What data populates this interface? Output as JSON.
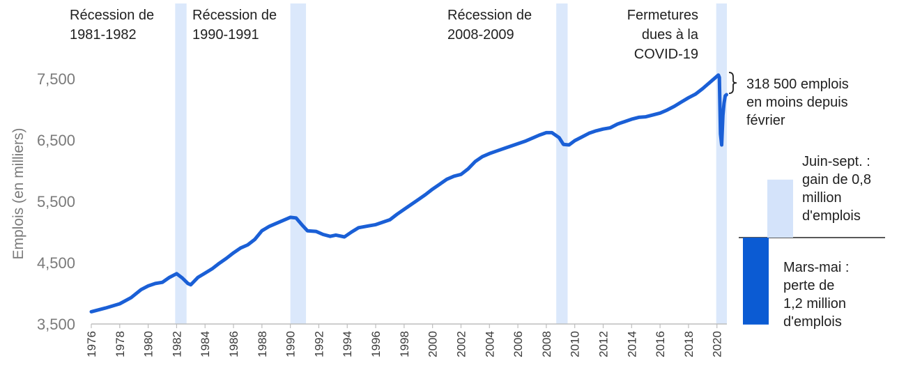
{
  "chart_data": {
    "type": "line",
    "ylabel": "Emplois (en milliers)",
    "ylim": [
      3500,
      7800
    ],
    "xlim": [
      1976,
      2020.7
    ],
    "yticks": [
      "3,500",
      "4,500",
      "5,500",
      "6,500",
      "7,500"
    ],
    "ytick_values": [
      3500,
      4500,
      5500,
      6500,
      7500
    ],
    "xticks": [
      "1976",
      "1978",
      "1980",
      "1982",
      "1984",
      "1986",
      "1988",
      "1990",
      "1992",
      "1994",
      "1996",
      "1998",
      "2000",
      "2002",
      "2004",
      "2006",
      "2008",
      "2010",
      "2012",
      "2014",
      "2016",
      "2018",
      "2020"
    ],
    "grid": false,
    "line_color": "#1a5fd6",
    "shade_color": "#dbe8fb",
    "recessions": [
      {
        "start": 1981.9,
        "end": 1982.7,
        "label": [
          "Récession de",
          "1981-1982"
        ]
      },
      {
        "start": 1990.0,
        "end": 1991.1,
        "label": [
          "Récession de",
          "1990-1991"
        ]
      },
      {
        "start": 2008.7,
        "end": 2009.5,
        "label": [
          "Récession de",
          "2008-2009"
        ]
      },
      {
        "start": 2019.95,
        "end": 2020.7,
        "label": [
          "Fermetures",
          "dues à la",
          "COVID-19"
        ]
      }
    ],
    "series": [
      {
        "values": [
          [
            1976.0,
            3700
          ],
          [
            1977.0,
            3760
          ],
          [
            1978.0,
            3830
          ],
          [
            1978.8,
            3930
          ],
          [
            1979.5,
            4060
          ],
          [
            1980.0,
            4120
          ],
          [
            1980.5,
            4160
          ],
          [
            1981.0,
            4180
          ],
          [
            1981.5,
            4260
          ],
          [
            1982.0,
            4320
          ],
          [
            1982.4,
            4250
          ],
          [
            1982.8,
            4160
          ],
          [
            1983.0,
            4140
          ],
          [
            1983.5,
            4260
          ],
          [
            1984.0,
            4330
          ],
          [
            1984.5,
            4400
          ],
          [
            1985.0,
            4490
          ],
          [
            1985.5,
            4570
          ],
          [
            1986.0,
            4660
          ],
          [
            1986.5,
            4740
          ],
          [
            1987.0,
            4790
          ],
          [
            1987.5,
            4880
          ],
          [
            1988.0,
            5020
          ],
          [
            1988.5,
            5090
          ],
          [
            1989.0,
            5140
          ],
          [
            1989.5,
            5190
          ],
          [
            1990.0,
            5240
          ],
          [
            1990.4,
            5230
          ],
          [
            1990.8,
            5120
          ],
          [
            1991.2,
            5020
          ],
          [
            1991.8,
            5010
          ],
          [
            1992.3,
            4960
          ],
          [
            1992.8,
            4930
          ],
          [
            1993.2,
            4950
          ],
          [
            1993.8,
            4920
          ],
          [
            1994.3,
            5000
          ],
          [
            1994.8,
            5070
          ],
          [
            1995.5,
            5100
          ],
          [
            1996.0,
            5120
          ],
          [
            1996.5,
            5160
          ],
          [
            1997.0,
            5200
          ],
          [
            1997.5,
            5290
          ],
          [
            1998.0,
            5370
          ],
          [
            1998.5,
            5450
          ],
          [
            1999.0,
            5530
          ],
          [
            1999.5,
            5610
          ],
          [
            2000.0,
            5700
          ],
          [
            2000.5,
            5780
          ],
          [
            2001.0,
            5860
          ],
          [
            2001.5,
            5910
          ],
          [
            2002.0,
            5940
          ],
          [
            2002.5,
            6030
          ],
          [
            2003.0,
            6150
          ],
          [
            2003.5,
            6230
          ],
          [
            2004.0,
            6280
          ],
          [
            2004.5,
            6320
          ],
          [
            2005.0,
            6360
          ],
          [
            2005.5,
            6400
          ],
          [
            2006.0,
            6440
          ],
          [
            2006.5,
            6480
          ],
          [
            2007.0,
            6530
          ],
          [
            2007.5,
            6580
          ],
          [
            2008.0,
            6620
          ],
          [
            2008.4,
            6620
          ],
          [
            2008.9,
            6540
          ],
          [
            2009.2,
            6430
          ],
          [
            2009.6,
            6420
          ],
          [
            2010.0,
            6490
          ],
          [
            2010.5,
            6550
          ],
          [
            2011.0,
            6610
          ],
          [
            2011.5,
            6650
          ],
          [
            2012.0,
            6680
          ],
          [
            2012.5,
            6700
          ],
          [
            2013.0,
            6760
          ],
          [
            2013.5,
            6800
          ],
          [
            2014.0,
            6840
          ],
          [
            2014.5,
            6870
          ],
          [
            2015.0,
            6880
          ],
          [
            2015.5,
            6910
          ],
          [
            2016.0,
            6940
          ],
          [
            2016.5,
            6990
          ],
          [
            2017.0,
            7050
          ],
          [
            2017.5,
            7120
          ],
          [
            2018.0,
            7190
          ],
          [
            2018.5,
            7250
          ],
          [
            2019.0,
            7340
          ],
          [
            2019.5,
            7440
          ],
          [
            2020.1,
            7560
          ],
          [
            2020.17,
            7520
          ],
          [
            2020.25,
            6600
          ],
          [
            2020.33,
            6420
          ],
          [
            2020.42,
            6900
          ],
          [
            2020.5,
            7100
          ],
          [
            2020.58,
            7220
          ],
          [
            2020.67,
            7240
          ]
        ]
      }
    ],
    "annotation_brace": [
      "318 500 emplois",
      "en moins depuis",
      "février"
    ],
    "inset_bars": [
      {
        "label": [
          "Juin-sept. :",
          "gain de 0,8",
          "million",
          "d'emplois"
        ],
        "value": 0.8,
        "color": "#d4e3fa"
      },
      {
        "label": [
          "Mars-mai :",
          "perte de",
          "1,2 million",
          "d'emplois"
        ],
        "value": -1.2,
        "color": "#0b5bd3"
      }
    ]
  }
}
